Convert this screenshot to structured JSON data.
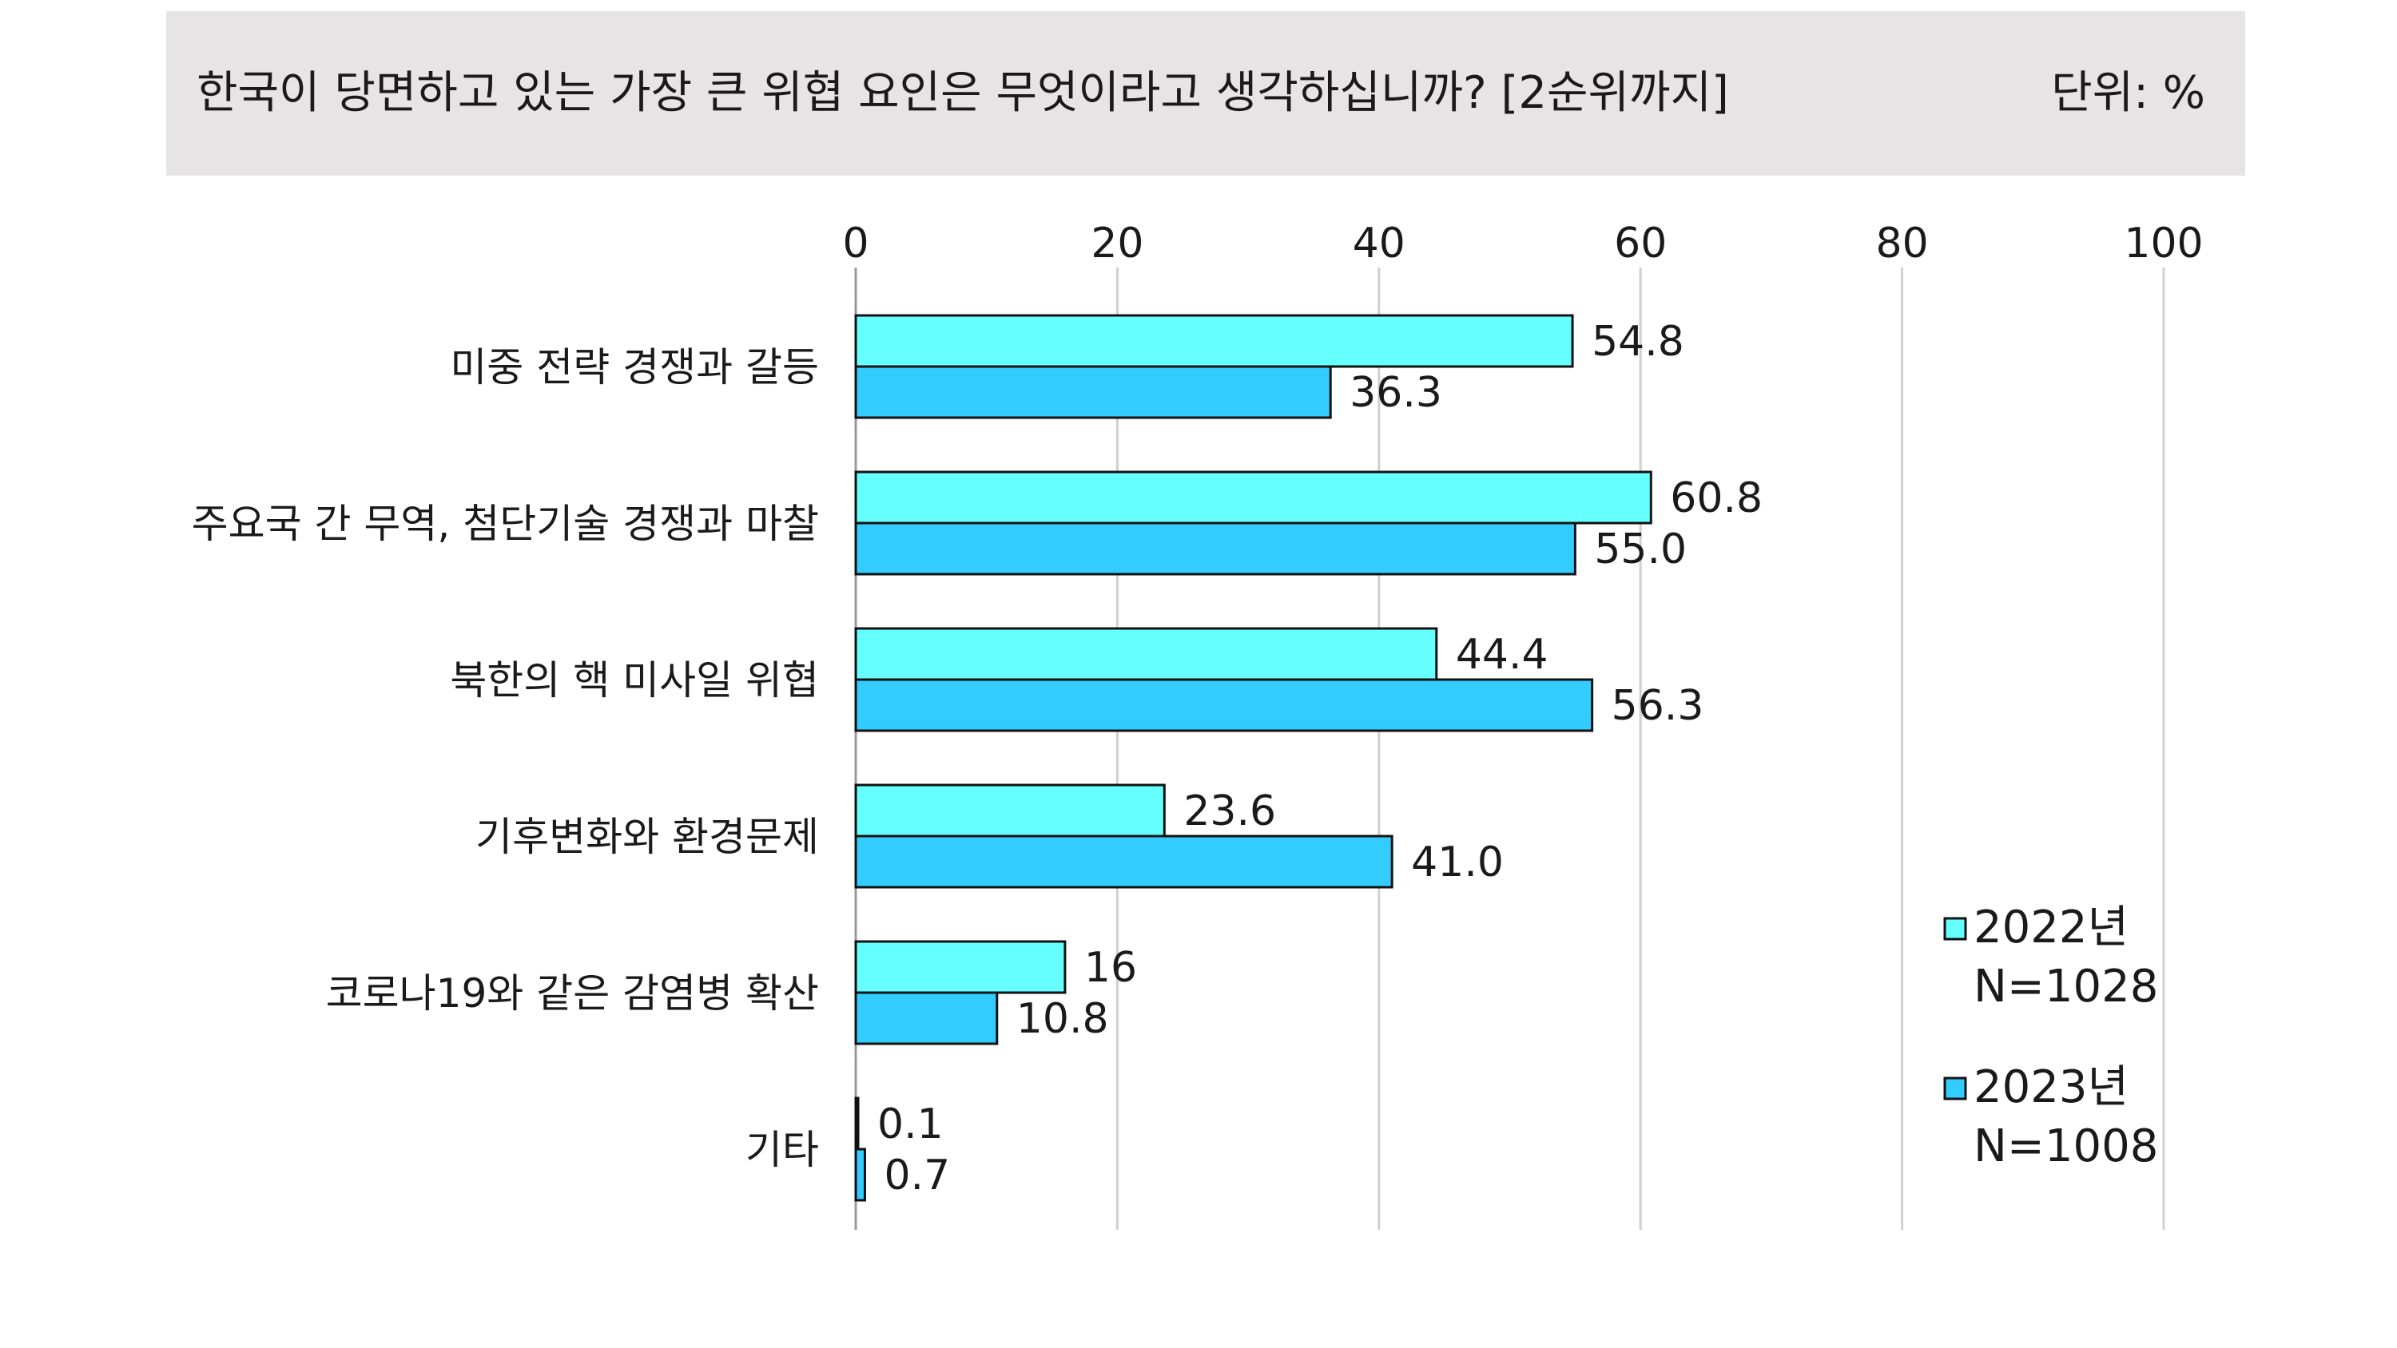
{
  "header": {
    "title": "한국이 당면하고 있는 가장 큰 위협 요인은 무엇이라고 생각하십니까? [2순위까지]",
    "unit": "단위: %"
  },
  "chart_data": {
    "type": "bar",
    "orientation": "horizontal",
    "title": "한국이 당면하고 있는 가장 큰 위협 요인은 무엇이라고 생각하십니까? [2순위까지]",
    "xlim": [
      0,
      100
    ],
    "ticks": [
      "0",
      "20",
      "40",
      "60",
      "80",
      "100"
    ],
    "grid": true,
    "legend_position": "bottom-right",
    "categories": [
      "미중 전략 경쟁과 갈등",
      "주요국 간 무역, 첨단기술 경쟁과 마찰",
      "북한의 핵 미사일 위협",
      "기후변화와 환경문제",
      "코로나19와 같은 감염병 확산",
      "기타"
    ],
    "series": [
      {
        "name": "2022년",
        "note": "N=1028",
        "color": "#66ffff",
        "values": [
          54.8,
          60.8,
          44.4,
          23.6,
          16,
          0.1
        ],
        "labels": [
          "54.8",
          "60.8",
          "44.4",
          "23.6",
          "16",
          "0.1"
        ]
      },
      {
        "name": "2023년",
        "note": "N=1008",
        "color": "#33ccff",
        "values": [
          36.3,
          55.0,
          56.3,
          41.0,
          10.8,
          0.7
        ],
        "labels": [
          "36.3",
          "55.0",
          "56.3",
          "41.0",
          "10.8",
          "0.7"
        ]
      }
    ]
  }
}
